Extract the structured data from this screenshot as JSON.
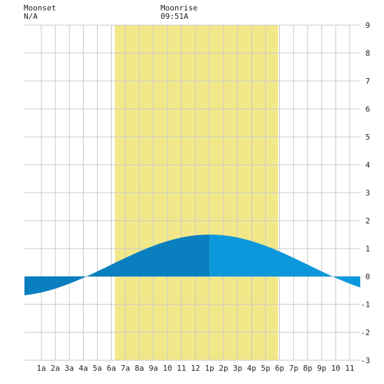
{
  "header": {
    "moonset": {
      "label": "Moonset",
      "value": "N/A"
    },
    "moonrise": {
      "label": "Moonrise",
      "value": "09:51A"
    }
  },
  "colors": {
    "daylight": "#f2e88a",
    "tide_night": "#0a7fbf",
    "tide_day_rising": "#0a7fbf",
    "tide_day_falling": "#0d98dc",
    "grid": "#c8c8c8",
    "plot_background": "#ffffff"
  },
  "chart_data": {
    "type": "area",
    "x_unit": "hour of day",
    "xlim": [
      -0.2,
      23.75
    ],
    "ylim": [
      -3,
      9
    ],
    "grid": true,
    "x_ticks": [
      {
        "x": 1,
        "label": "1a"
      },
      {
        "x": 2,
        "label": "2a"
      },
      {
        "x": 3,
        "label": "3a"
      },
      {
        "x": 4,
        "label": "4a"
      },
      {
        "x": 5,
        "label": "5a"
      },
      {
        "x": 6,
        "label": "6a"
      },
      {
        "x": 7,
        "label": "7a"
      },
      {
        "x": 8,
        "label": "8a"
      },
      {
        "x": 9,
        "label": "9a"
      },
      {
        "x": 10,
        "label": "10"
      },
      {
        "x": 11,
        "label": "11"
      },
      {
        "x": 12,
        "label": "12"
      },
      {
        "x": 13,
        "label": "1p"
      },
      {
        "x": 14,
        "label": "2p"
      },
      {
        "x": 15,
        "label": "3p"
      },
      {
        "x": 16,
        "label": "4p"
      },
      {
        "x": 17,
        "label": "5p"
      },
      {
        "x": 18,
        "label": "6p"
      },
      {
        "x": 19,
        "label": "7p"
      },
      {
        "x": 20,
        "label": "8p"
      },
      {
        "x": 21,
        "label": "9p"
      },
      {
        "x": 22,
        "label": "10"
      },
      {
        "x": 23,
        "label": "11"
      }
    ],
    "y_ticks": [
      9,
      8,
      7,
      6,
      5,
      4,
      3,
      2,
      1,
      0,
      -1,
      -2,
      -3
    ],
    "daylight": {
      "start": 6.25,
      "end": 17.9
    },
    "tide_extrema": [
      {
        "x": -1.2,
        "y": -0.7
      },
      {
        "x": 13.0,
        "y": 1.5
      },
      {
        "x": 27.2,
        "y": -0.7
      }
    ]
  }
}
